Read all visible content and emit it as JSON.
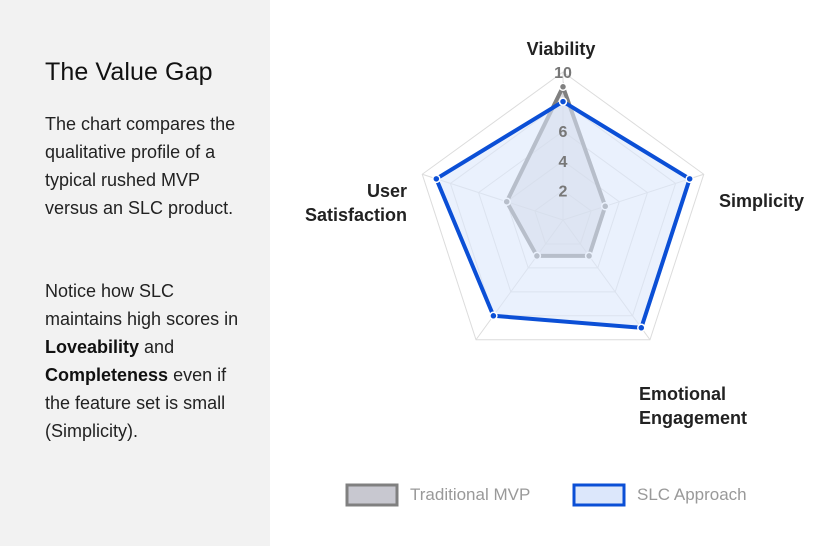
{
  "panel": {
    "title": "The Value Gap",
    "p1": "The chart compares the qualitative profile of a typical rushed MVP versus an SLC product.",
    "p2_intro": "Notice how SLC maintains high scores in",
    "p2_bold1": "Loveability",
    "p2_and": "and",
    "p2_bold2": "Completeness",
    "p2_outro": "even if the feature set is small (Simplicity)."
  },
  "chart_data": {
    "type": "radar",
    "axes": [
      "Viability",
      "Simplicity",
      "Emotional Engagement",
      "Satisfaction",
      "User Satisfaction"
    ],
    "axis_display": [
      [
        "Viability"
      ],
      [
        "Simplicity"
      ],
      [
        "Emotional",
        "Engagement"
      ],
      [],
      [
        "User",
        "Satisfaction"
      ]
    ],
    "range": [
      0,
      10
    ],
    "ticks": [
      2,
      4,
      6,
      8,
      10
    ],
    "tick_labels": [
      "2",
      "4",
      "6",
      "",
      "10"
    ],
    "series": [
      {
        "name": "Traditional MVP",
        "values": [
          9,
          3,
          3,
          3,
          4
        ],
        "stroke": "#808080",
        "fill": "#c8c8d0"
      },
      {
        "name": "SLC Approach",
        "values": [
          8,
          9,
          9,
          8,
          9
        ],
        "stroke": "#0b4fd6",
        "fill": "#dce7fb"
      }
    ],
    "grid": true,
    "legend": "bottom"
  }
}
